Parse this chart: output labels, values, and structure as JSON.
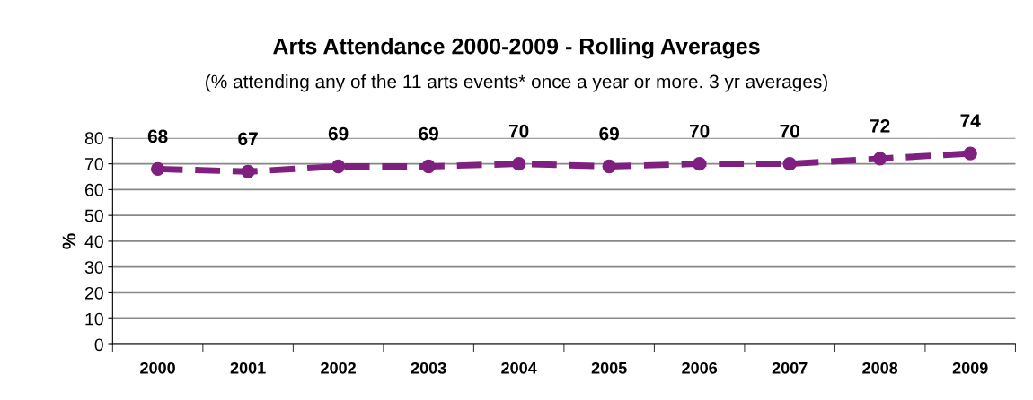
{
  "chart_data": {
    "type": "line",
    "title": "Arts Attendance 2000-2009 - Rolling Averages",
    "subtitle": "(% attending any of the 11 arts events* once a year or more. 3 yr averages)",
    "ylabel": "%",
    "categories": [
      "2000",
      "2001",
      "2002",
      "2003",
      "2004",
      "2005",
      "2006",
      "2007",
      "2008",
      "2009"
    ],
    "series": [
      {
        "color": "#7f1f7f",
        "values": [
          68,
          67,
          69,
          69,
          70,
          69,
          70,
          70,
          72,
          74
        ]
      }
    ],
    "ylim": [
      0,
      80
    ],
    "yticks": [
      0,
      10,
      20,
      30,
      40,
      50,
      60,
      70,
      80
    ],
    "grid": "y",
    "marker": "circle",
    "line_style": "dashed",
    "data_labels": true
  }
}
